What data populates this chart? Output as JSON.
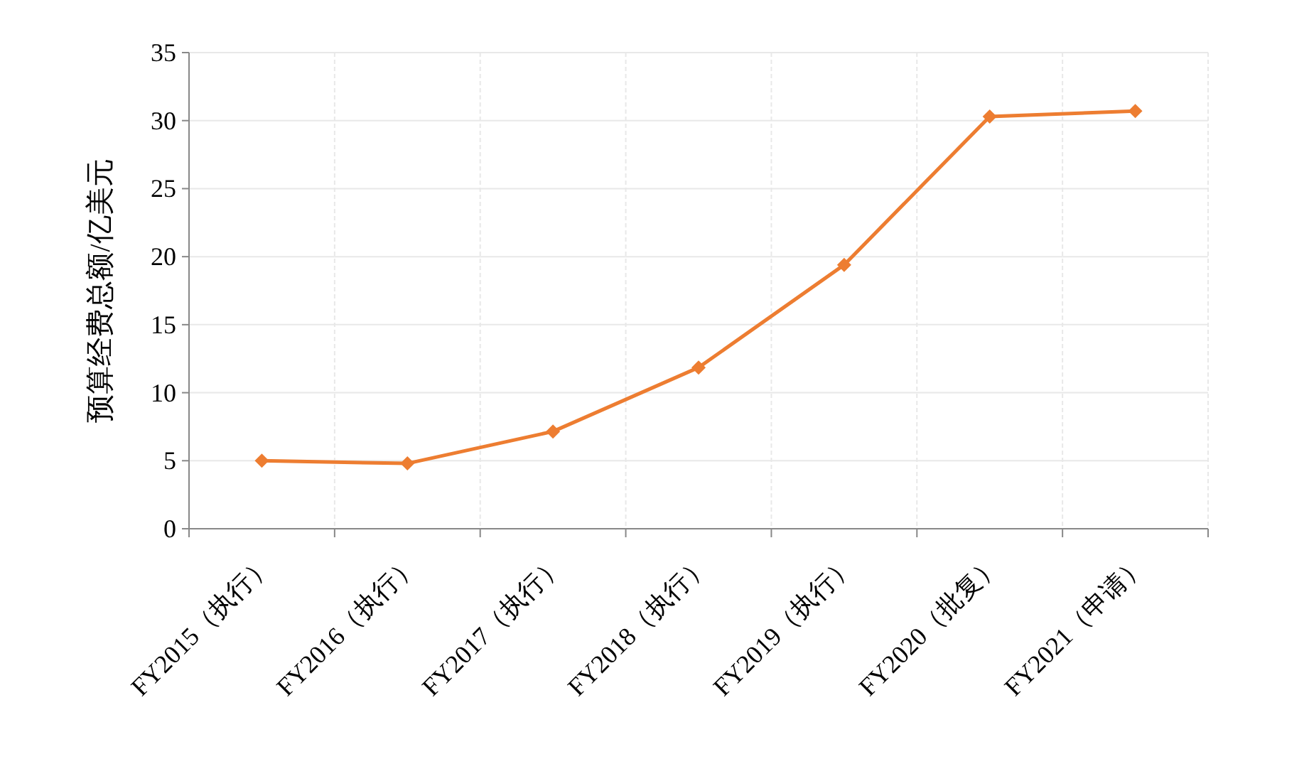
{
  "chart_data": {
    "type": "line",
    "ylabel": "预算经费总额/亿美元",
    "categories": [
      "FY2015（执行）",
      "FY2016（执行）",
      "FY2017（执行）",
      "FY2018（执行）",
      "FY2019（执行）",
      "FY2020（批复）",
      "FY2021（申请）"
    ],
    "series": [
      {
        "color": "#ed7d31",
        "values": [
          5.0,
          4.8,
          7.15,
          11.85,
          19.4,
          30.3,
          30.7
        ]
      }
    ],
    "ylim": [
      0,
      35
    ],
    "yticks": [
      0,
      5,
      10,
      15,
      20,
      25,
      30,
      35
    ],
    "grid": true,
    "marker": "diamond",
    "line_style": "solid"
  }
}
